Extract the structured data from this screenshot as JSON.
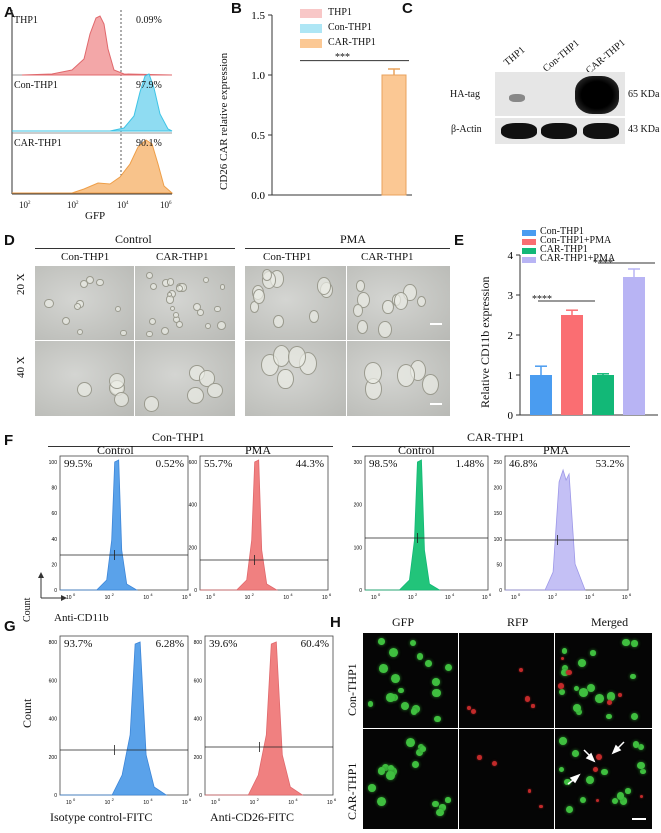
{
  "panels": {
    "A": {
      "label": "A",
      "tracks": [
        {
          "name": "THP1",
          "pct": "0.09%",
          "color": "#e0686c"
        },
        {
          "name": "Con-THP1",
          "pct": "97.9%",
          "color": "#3ec4e6"
        },
        {
          "name": "CAR-THP1",
          "pct": "90.1%",
          "color": "#ee9e48"
        }
      ],
      "xticks": [
        "10",
        "2",
        "10",
        "4",
        "10",
        "6"
      ],
      "xlabel": "GFP"
    },
    "B": {
      "label": "B",
      "legend": [
        "THP1",
        "Con-THP1",
        "CAR-THP1"
      ],
      "ylabel": "CD26 CAR relative  expression",
      "yticks": [
        "0.0",
        "0.5",
        "1.0",
        "1.5"
      ],
      "sig": "***"
    },
    "C": {
      "label": "C",
      "lanes": [
        "THP1",
        "Con-THP1",
        "CAR-THP1"
      ],
      "rows": [
        {
          "name": "HA-tag",
          "size": "65 KDa"
        },
        {
          "name": "β-Actin",
          "size": "43 KDa"
        }
      ]
    },
    "D": {
      "label": "D",
      "groups": [
        "Control",
        "PMA"
      ],
      "cols": [
        "Con-THP1",
        "CAR-THP1",
        "Con-THP1",
        "CAR-THP1"
      ],
      "rows": [
        "20 X",
        "40 X"
      ]
    },
    "E": {
      "label": "E",
      "legend": [
        "Con-THP1",
        "Con-THP1+PMA",
        "CAR-THP1",
        "CAR-THP1+PMA"
      ],
      "ylabel": "Relative CD11b expression",
      "yticks": [
        "0",
        "1",
        "2",
        "3",
        "4"
      ],
      "sig1": "****",
      "sig2": "****"
    },
    "F": {
      "label": "F",
      "group1": "Con-THP1",
      "group2": "CAR-THP1",
      "sub": [
        "Control",
        "PMA",
        "Control",
        "PMA"
      ],
      "pcts": [
        [
          "99.5%",
          "0.52%"
        ],
        [
          "55.7%",
          "44.3%"
        ],
        [
          "98.5%",
          "1.48%"
        ],
        [
          "46.8%",
          "53.2%"
        ]
      ],
      "count": "Count",
      "xlabel": "Anti-CD11b"
    },
    "G": {
      "label": "G",
      "pcts": [
        [
          "93.7%",
          "6.28%"
        ],
        [
          "39.6%",
          "60.4%"
        ]
      ],
      "ylabel": "Count",
      "xlabels": [
        "Isotype control-FITC",
        "Anti-CD26-FITC"
      ]
    },
    "H": {
      "label": "H",
      "cols": [
        "GFP",
        "RFP",
        "Merged"
      ],
      "rows": [
        "Con-THP1",
        "CAR-THP1"
      ]
    }
  },
  "chart_data": [
    {
      "type": "bar",
      "title": "",
      "categories": [
        "THP1",
        "Con-THP1",
        "CAR-THP1"
      ],
      "values": [
        0,
        0,
        1.0
      ],
      "error": [
        0,
        0,
        0.05
      ],
      "ylabel": "CD26 CAR relative  expression",
      "ylim": [
        0,
        1.5
      ],
      "colors": [
        "#f8c7c7",
        "#aee6f5",
        "#fbc894"
      ]
    },
    {
      "type": "bar",
      "title": "",
      "categories": [
        "Con-THP1",
        "Con-THP1+PMA",
        "CAR-THP1",
        "CAR-THP1+PMA"
      ],
      "values": [
        1.0,
        2.5,
        1.0,
        3.45
      ],
      "error": [
        0.22,
        0.12,
        0.03,
        0.2
      ],
      "ylabel": "Relative CD11b expression",
      "ylim": [
        0,
        4
      ],
      "colors": [
        "#4a9cf0",
        "#fa6e72",
        "#12b877",
        "#b8b4f4"
      ]
    }
  ]
}
